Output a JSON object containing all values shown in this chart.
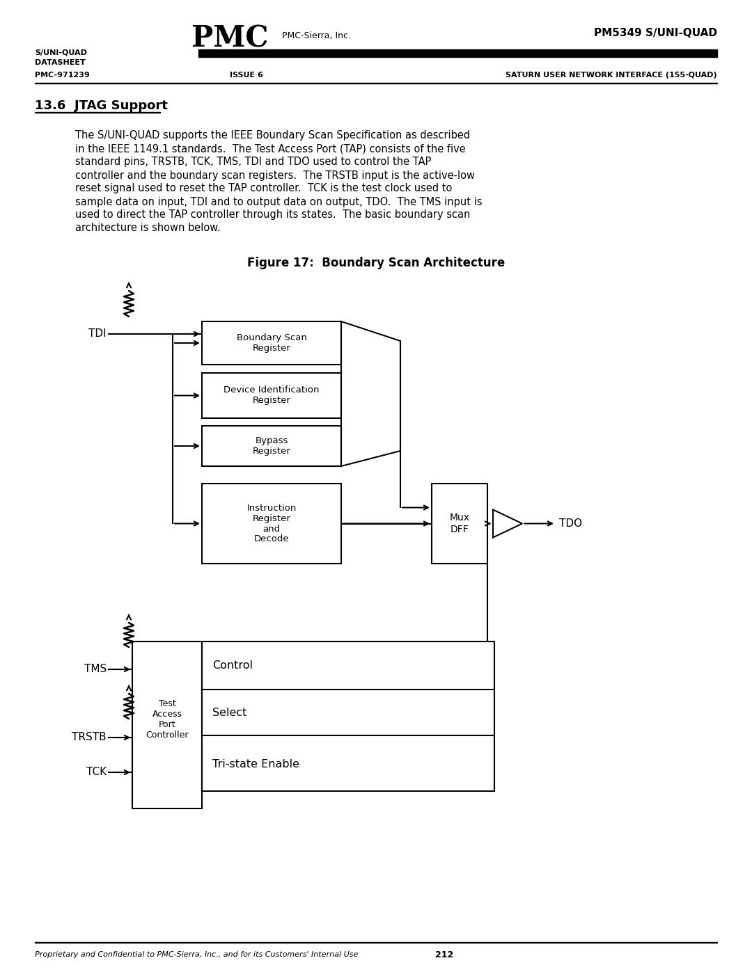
{
  "page_width": 10.8,
  "page_height": 13.97,
  "bg_color": "#ffffff",
  "header": {
    "logo_text": "PMC",
    "logo_subtitle": "PMC-Sierra, Inc.",
    "top_right": "PM5349 S/UNI-QUAD",
    "left_line1": "S/UNI-QUAD",
    "left_line2": "DATASHEET",
    "left_line3": "PMC-971239",
    "mid_text": "ISSUE 6",
    "right_text": "SATURN USER NETWORK INTERFACE (155-QUAD)"
  },
  "section_title": "13.6  JTAG Support",
  "body_text": "The S/UNI-QUAD supports the IEEE Boundary Scan Specification as described\nin the IEEE 1149.1 standards.  The Test Access Port (TAP) consists of the five\nstandard pins, TRSTB, TCK, TMS, TDI and TDO used to control the TAP\ncontroller and the boundary scan registers.  The TRSTB input is the active-low\nreset signal used to reset the TAP controller.  TCK is the test clock used to\nsample data on input, TDI and to output data on output, TDO.  The TMS input is\nused to direct the TAP controller through its states.  The basic boundary scan\narchitecture is shown below.",
  "figure_title": "Figure 17:  Boundary Scan Architecture",
  "footer_text": "Proprietary and Confidential to PMC-Sierra, Inc., and for its Customers' Internal Use",
  "footer_page": "212"
}
